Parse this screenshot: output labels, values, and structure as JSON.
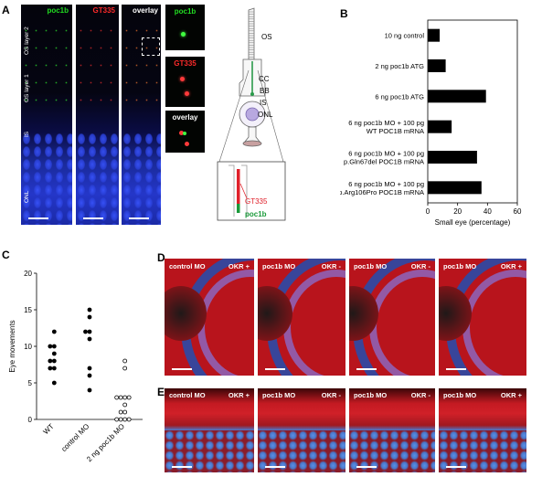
{
  "panel_labels": {
    "A": "A",
    "B": "B",
    "C": "C",
    "D": "D",
    "E": "E"
  },
  "panel_a": {
    "channels": [
      {
        "label": "poc1b",
        "color": "#22dd22"
      },
      {
        "label": "GT335",
        "color": "#ff2a2a"
      },
      {
        "label": "overlay",
        "color": "#ffffff"
      }
    ],
    "layer_labels": [
      "OS layer 2",
      "OS layer 1",
      "IS",
      "ONL"
    ],
    "zoom_labels": [
      {
        "label": "poc1b",
        "color": "#22dd22"
      },
      {
        "label": "GT335",
        "color": "#ff2a2a"
      },
      {
        "label": "overlay",
        "color": "#ffffff"
      }
    ]
  },
  "schematic": {
    "labels": [
      "OS",
      "CC",
      "BB",
      "IS",
      "ONL"
    ],
    "inset_labels": [
      {
        "label": "GT335",
        "color": "#e0202a"
      },
      {
        "label": "poc1b",
        "color": "#1a9a3a"
      }
    ]
  },
  "chart_data": [
    {
      "type": "bar",
      "orientation": "horizontal",
      "categories": [
        "10 ng control",
        "2 ng poc1b ATG",
        "6 ng poc1b ATG",
        "6 ng poc1b MO + 100 pg\nWT POC1B mRNA",
        "6 ng poc1b MO + 100 pg\np.Gln67del POC1B mRNA",
        "6 ng poc1b MO + 100 pg\np.Arg106Pro POC1B mRNA"
      ],
      "values": [
        8,
        12,
        39,
        16,
        33,
        36
      ],
      "xlabel": "Small eye (percentage)",
      "xlim": [
        0,
        60
      ],
      "xticks": [
        0,
        20,
        40,
        60
      ],
      "bar_color": "#000000"
    },
    {
      "type": "scatter",
      "categories": [
        "WT",
        "control MO",
        "2 ng poc1b MO"
      ],
      "series": [
        {
          "category": "WT",
          "filled": true,
          "values": [
            12,
            10,
            10,
            9,
            8,
            8,
            7,
            7,
            5
          ]
        },
        {
          "category": "control MO",
          "filled": true,
          "values": [
            15,
            14,
            12,
            12,
            11,
            7,
            6,
            4
          ]
        },
        {
          "category": "2 ng poc1b MO",
          "filled": false,
          "values": [
            8,
            7,
            3,
            3,
            3,
            3,
            2,
            1,
            1,
            0,
            0,
            0,
            0
          ]
        }
      ],
      "ylabel": "Eye movements",
      "ylim": [
        0,
        20
      ],
      "yticks": [
        0,
        5,
        10,
        15,
        20
      ]
    }
  ],
  "panel_d": [
    {
      "label": "control MO",
      "okr": "OKR +"
    },
    {
      "label": "poc1b MO",
      "okr": "OKR -"
    },
    {
      "label": "poc1b MO",
      "okr": "OKR -"
    },
    {
      "label": "poc1b MO",
      "okr": "OKR +"
    }
  ],
  "panel_e": [
    {
      "label": "control MO",
      "okr": "OKR +"
    },
    {
      "label": "poc1b MO",
      "okr": "OKR -"
    },
    {
      "label": "poc1b MO",
      "okr": "OKR -"
    },
    {
      "label": "poc1b MO",
      "okr": "OKR +"
    }
  ]
}
